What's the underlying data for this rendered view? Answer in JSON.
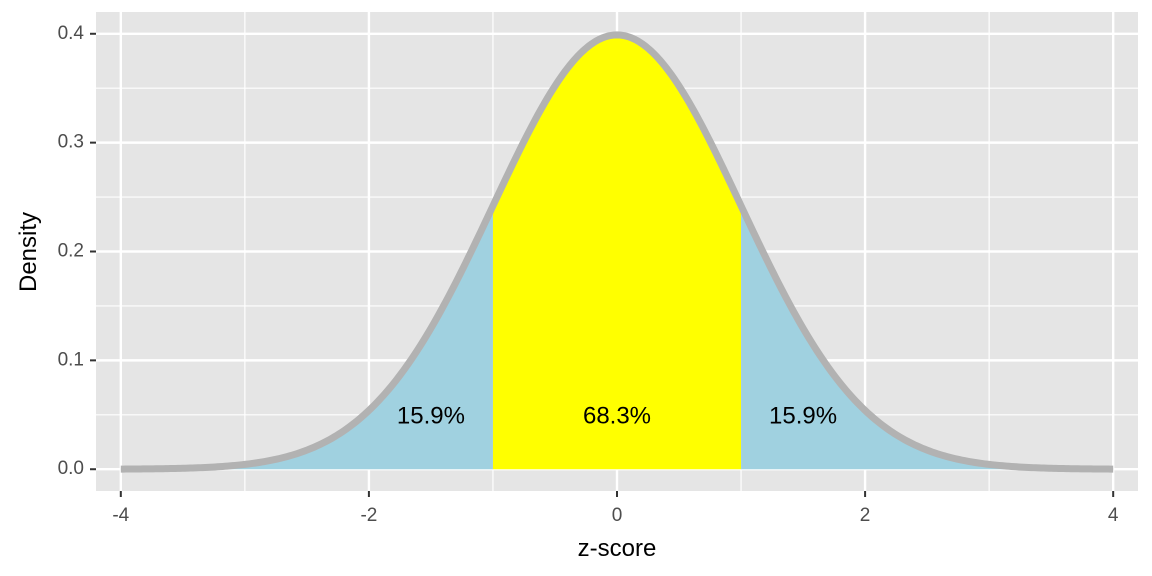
{
  "chart_data": {
    "type": "area",
    "title": "",
    "xlabel": "z-score",
    "ylabel": "Density",
    "xlim": [
      -4.2,
      4.2
    ],
    "ylim": [
      -0.02,
      0.42
    ],
    "x_ticks": [
      -4,
      -2,
      0,
      2,
      4
    ],
    "x_tick_labels": [
      "-4",
      "-2",
      "0",
      "2",
      "4"
    ],
    "y_ticks": [
      0.0,
      0.1,
      0.2,
      0.3,
      0.4
    ],
    "y_tick_labels": [
      "0.0",
      "0.1",
      "0.2",
      "0.3",
      "0.4"
    ],
    "grid": true,
    "curve": {
      "distribution": "standard normal",
      "mean": 0,
      "sd": 1,
      "x_range": [
        -4,
        4
      ],
      "color": "#b2b2b2"
    },
    "regions": [
      {
        "x_from": -4,
        "x_to": -1,
        "color": "#a0d1e0",
        "label": "15.9%",
        "label_x": -1.5,
        "label_y": 0.048
      },
      {
        "x_from": -1,
        "x_to": 1,
        "color": "#ffff00",
        "label": "68.3%",
        "label_x": 0,
        "label_y": 0.048
      },
      {
        "x_from": 1,
        "x_to": 4,
        "color": "#a0d1e0",
        "label": "15.9%",
        "label_x": 1.5,
        "label_y": 0.048
      }
    ],
    "panel_background": "#e5e5e5",
    "grid_color": "#ffffff"
  }
}
